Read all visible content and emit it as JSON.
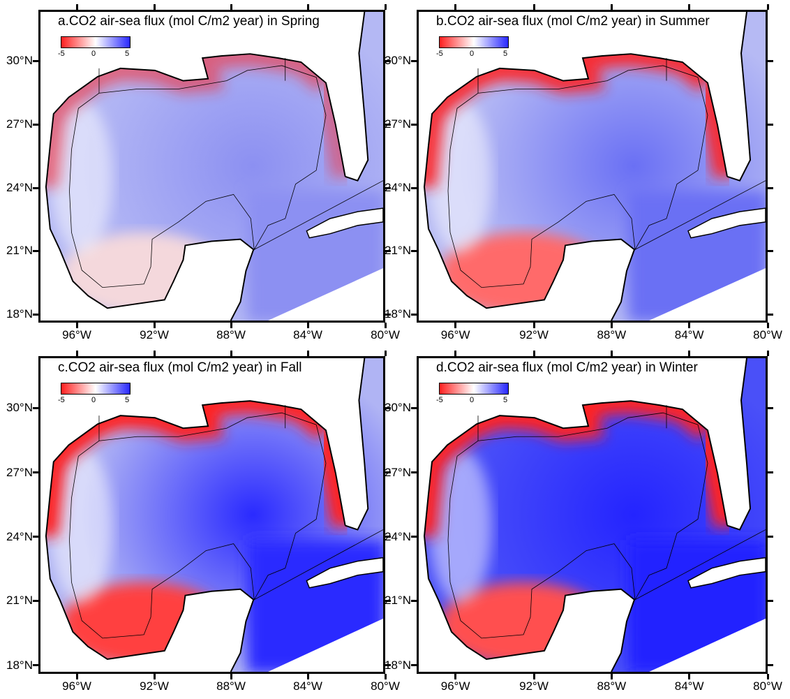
{
  "panels": [
    {
      "id": "a",
      "title": "a.CO2 air-sea flux (mol C/m2 year) in Spring",
      "water": "#b4b8f4",
      "deep": "#8c90f2",
      "red_strength": 0.55,
      "south": "#f4d8dc",
      "florida": 0.45
    },
    {
      "id": "b",
      "title": "b.CO2 air-sea flux (mol C/m2 year) in Summer",
      "water": "#b6baf4",
      "deep": "#6a70f4",
      "red_strength": 0.9,
      "south": "#ff6a6a",
      "florida": 0.9
    },
    {
      "id": "c",
      "title": "c.CO2 air-sea flux (mol C/m2 year) in Fall",
      "water": "#b0b4f4",
      "deep": "#2a2aff",
      "red_strength": 1.0,
      "south": "#ff4040",
      "florida": 1.0
    },
    {
      "id": "d",
      "title": "d.CO2 air-sea flux (mol C/m2 year) in Winter",
      "water": "#4a50f8",
      "deep": "#2424ff",
      "red_strength": 1.0,
      "south": "#ff5050",
      "florida": 1.0
    }
  ],
  "colorbar": {
    "ticks": [
      "-5",
      "0",
      "5"
    ],
    "low_color": "#ff2020",
    "mid_color": "#ffffff",
    "high_color": "#2828ff"
  },
  "lat_ticks": [
    "30°N",
    "27°N",
    "24°N",
    "21°N",
    "18°N"
  ],
  "lon_ticks": [
    "96°W",
    "92°W",
    "88°W",
    "84°W",
    "80°W"
  ]
}
